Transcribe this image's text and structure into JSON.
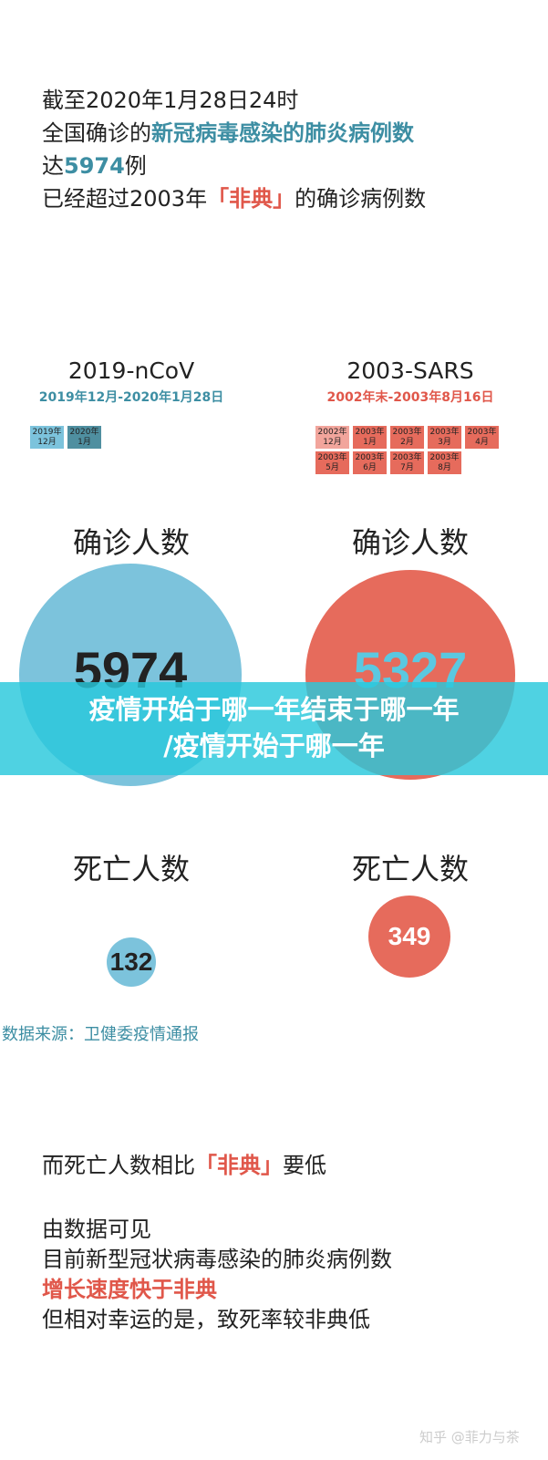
{
  "intro": {
    "l1": "截至2020年1月28日24时",
    "l2a": "全国确诊的",
    "l2b": "新冠病毒感染的肺炎病例数",
    "l3a": "达",
    "l3b": "5974",
    "l3c": "例",
    "l4a": "已经超过2003年",
    "l4b": "「非典」",
    "l4c": "的确诊病例数"
  },
  "ncov": {
    "title": "2019-nCoV",
    "range": "2019年12月-2020年1月28日",
    "months": [
      {
        "y": "2019年",
        "m": "12月"
      },
      {
        "y": "2020年",
        "m": "1月"
      }
    ],
    "confirmed_label": "确诊人数",
    "confirmed": "5974",
    "deaths_label": "死亡人数",
    "deaths": "132"
  },
  "sars": {
    "title": "2003-SARS",
    "range": "2002年末-2003年8月16日",
    "months": [
      {
        "y": "2002年",
        "m": "12月"
      },
      {
        "y": "2003年",
        "m": "1月"
      },
      {
        "y": "2003年",
        "m": "2月"
      },
      {
        "y": "2003年",
        "m": "3月"
      },
      {
        "y": "2003年",
        "m": "4月"
      },
      {
        "y": "2003年",
        "m": "5月"
      },
      {
        "y": "2003年",
        "m": "6月"
      },
      {
        "y": "2003年",
        "m": "7月"
      },
      {
        "y": "2003年",
        "m": "8月"
      }
    ],
    "confirmed_label": "确诊人数",
    "confirmed": "5327",
    "deaths_label": "死亡人数",
    "deaths": "349"
  },
  "source": "数据来源：卫健委疫情通报",
  "banner": {
    "l1": "疫情开始于哪一年结束于哪一年",
    "l2": "/疫情开始于哪一年"
  },
  "outro": {
    "l1a": "而死亡人数相比",
    "l1b": "「非典」",
    "l1c": "要低",
    "l2": "由数据可见",
    "l3": "目前新型冠状病毒感染的肺炎病例数",
    "l4": "增长速度快于非典",
    "l5": "但相对幸运的是，致死率较非典低"
  },
  "watermark": "知乎 @菲力与茶",
  "colors": {
    "teal": "#3d8ea3",
    "blue_circle": "#7cc3dc",
    "red": "#e66b5c",
    "banner": "#28c8dc"
  }
}
